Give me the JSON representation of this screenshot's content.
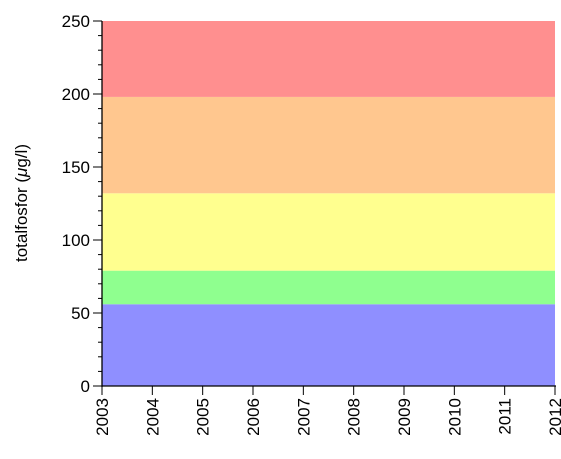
{
  "chart_data": {
    "type": "area",
    "ylabel": "totalfosfor (μg/l)",
    "xlim": [
      2003,
      2012
    ],
    "ylim": [
      0,
      250
    ],
    "x_ticks": [
      "2003",
      "2004",
      "2005",
      "2006",
      "2007",
      "2008",
      "2009",
      "2010",
      "2011",
      "2012"
    ],
    "y_ticks": [
      "0",
      "50",
      "100",
      "150",
      "200",
      "250"
    ],
    "grid": false,
    "bands": [
      {
        "from": 0,
        "to": 56,
        "color": "#8f8fff"
      },
      {
        "from": 56,
        "to": 79,
        "color": "#8fff8f"
      },
      {
        "from": 79,
        "to": 132,
        "color": "#ffff8f"
      },
      {
        "from": 132,
        "to": 198,
        "color": "#ffc78f"
      },
      {
        "from": 198,
        "to": 250,
        "color": "#ff8f8f"
      }
    ]
  }
}
